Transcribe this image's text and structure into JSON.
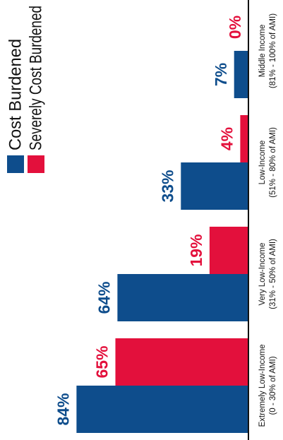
{
  "chart_data": {
    "type": "bar",
    "categories": [
      [
        "Extremely Low-Income",
        "(0 - 30% of AMI)"
      ],
      [
        "Very Low-Income",
        "(31% - 50% of AMI)"
      ],
      [
        "Low-Income",
        "(51% - 80% of AMI)"
      ],
      [
        "Middle Income",
        "(81% - 100% of AMI)"
      ]
    ],
    "series": [
      {
        "name": "Cost Burdened",
        "color": "#0e4d8c",
        "values": [
          84,
          64,
          33,
          7
        ],
        "value_labels": [
          "84%",
          "64%",
          "33%",
          "7%"
        ]
      },
      {
        "name": "Severely Cost Burdened",
        "color": "#e3103c",
        "values": [
          65,
          19,
          4,
          0
        ],
        "value_labels": [
          "65%",
          "19%",
          "4%",
          "0%"
        ]
      }
    ],
    "ylim": [
      0,
      100
    ],
    "legend": "top-right"
  }
}
